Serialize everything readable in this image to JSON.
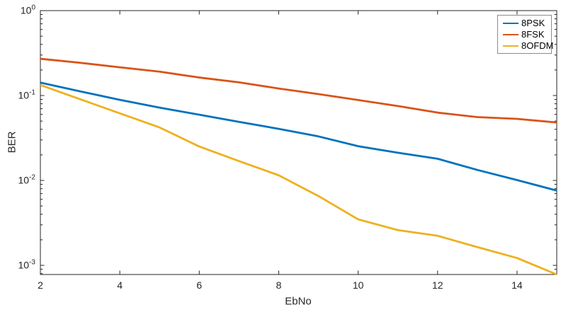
{
  "chart_data": {
    "type": "line",
    "title": "",
    "xlabel": "EbNo",
    "ylabel": "BER",
    "x": [
      2,
      3,
      4,
      5,
      6,
      7,
      8,
      9,
      10,
      11,
      12,
      13,
      14,
      15
    ],
    "series": [
      {
        "name": "8PSK",
        "color": "#0072BD",
        "values": [
          0.142,
          0.112,
          0.089,
          0.072,
          0.0595,
          0.049,
          0.0405,
          0.033,
          0.0253,
          0.0212,
          0.018,
          0.0133,
          0.0101,
          0.0076
        ]
      },
      {
        "name": "8FSK",
        "color": "#D95319",
        "values": [
          0.271,
          0.243,
          0.215,
          0.191,
          0.163,
          0.143,
          0.121,
          0.104,
          0.0885,
          0.0752,
          0.0629,
          0.0557,
          0.0531,
          0.0481
        ]
      },
      {
        "name": "8OFDM",
        "color": "#EDB120",
        "values": [
          0.133,
          0.0905,
          0.0617,
          0.0421,
          0.0251,
          0.0169,
          0.0115,
          0.00655,
          0.00348,
          0.0026,
          0.00223,
          0.00164,
          0.00122,
          0.00078
        ]
      }
    ],
    "xlim": [
      2,
      15
    ],
    "ylim": [
      0.00078,
      1
    ],
    "yscale": "log",
    "xticks": [
      2,
      4,
      6,
      8,
      10,
      12,
      14
    ],
    "yticks": [
      {
        "value": 1,
        "base": "10",
        "exp": "0"
      },
      {
        "value": 0.1,
        "base": "10",
        "exp": "-1"
      },
      {
        "value": 0.01,
        "base": "10",
        "exp": "-2"
      },
      {
        "value": 0.001,
        "base": "10",
        "exp": "-3"
      }
    ],
    "grid": false,
    "legend_position": "northeast",
    "axis_color": "#262626",
    "tick_label_color": "#262626"
  }
}
